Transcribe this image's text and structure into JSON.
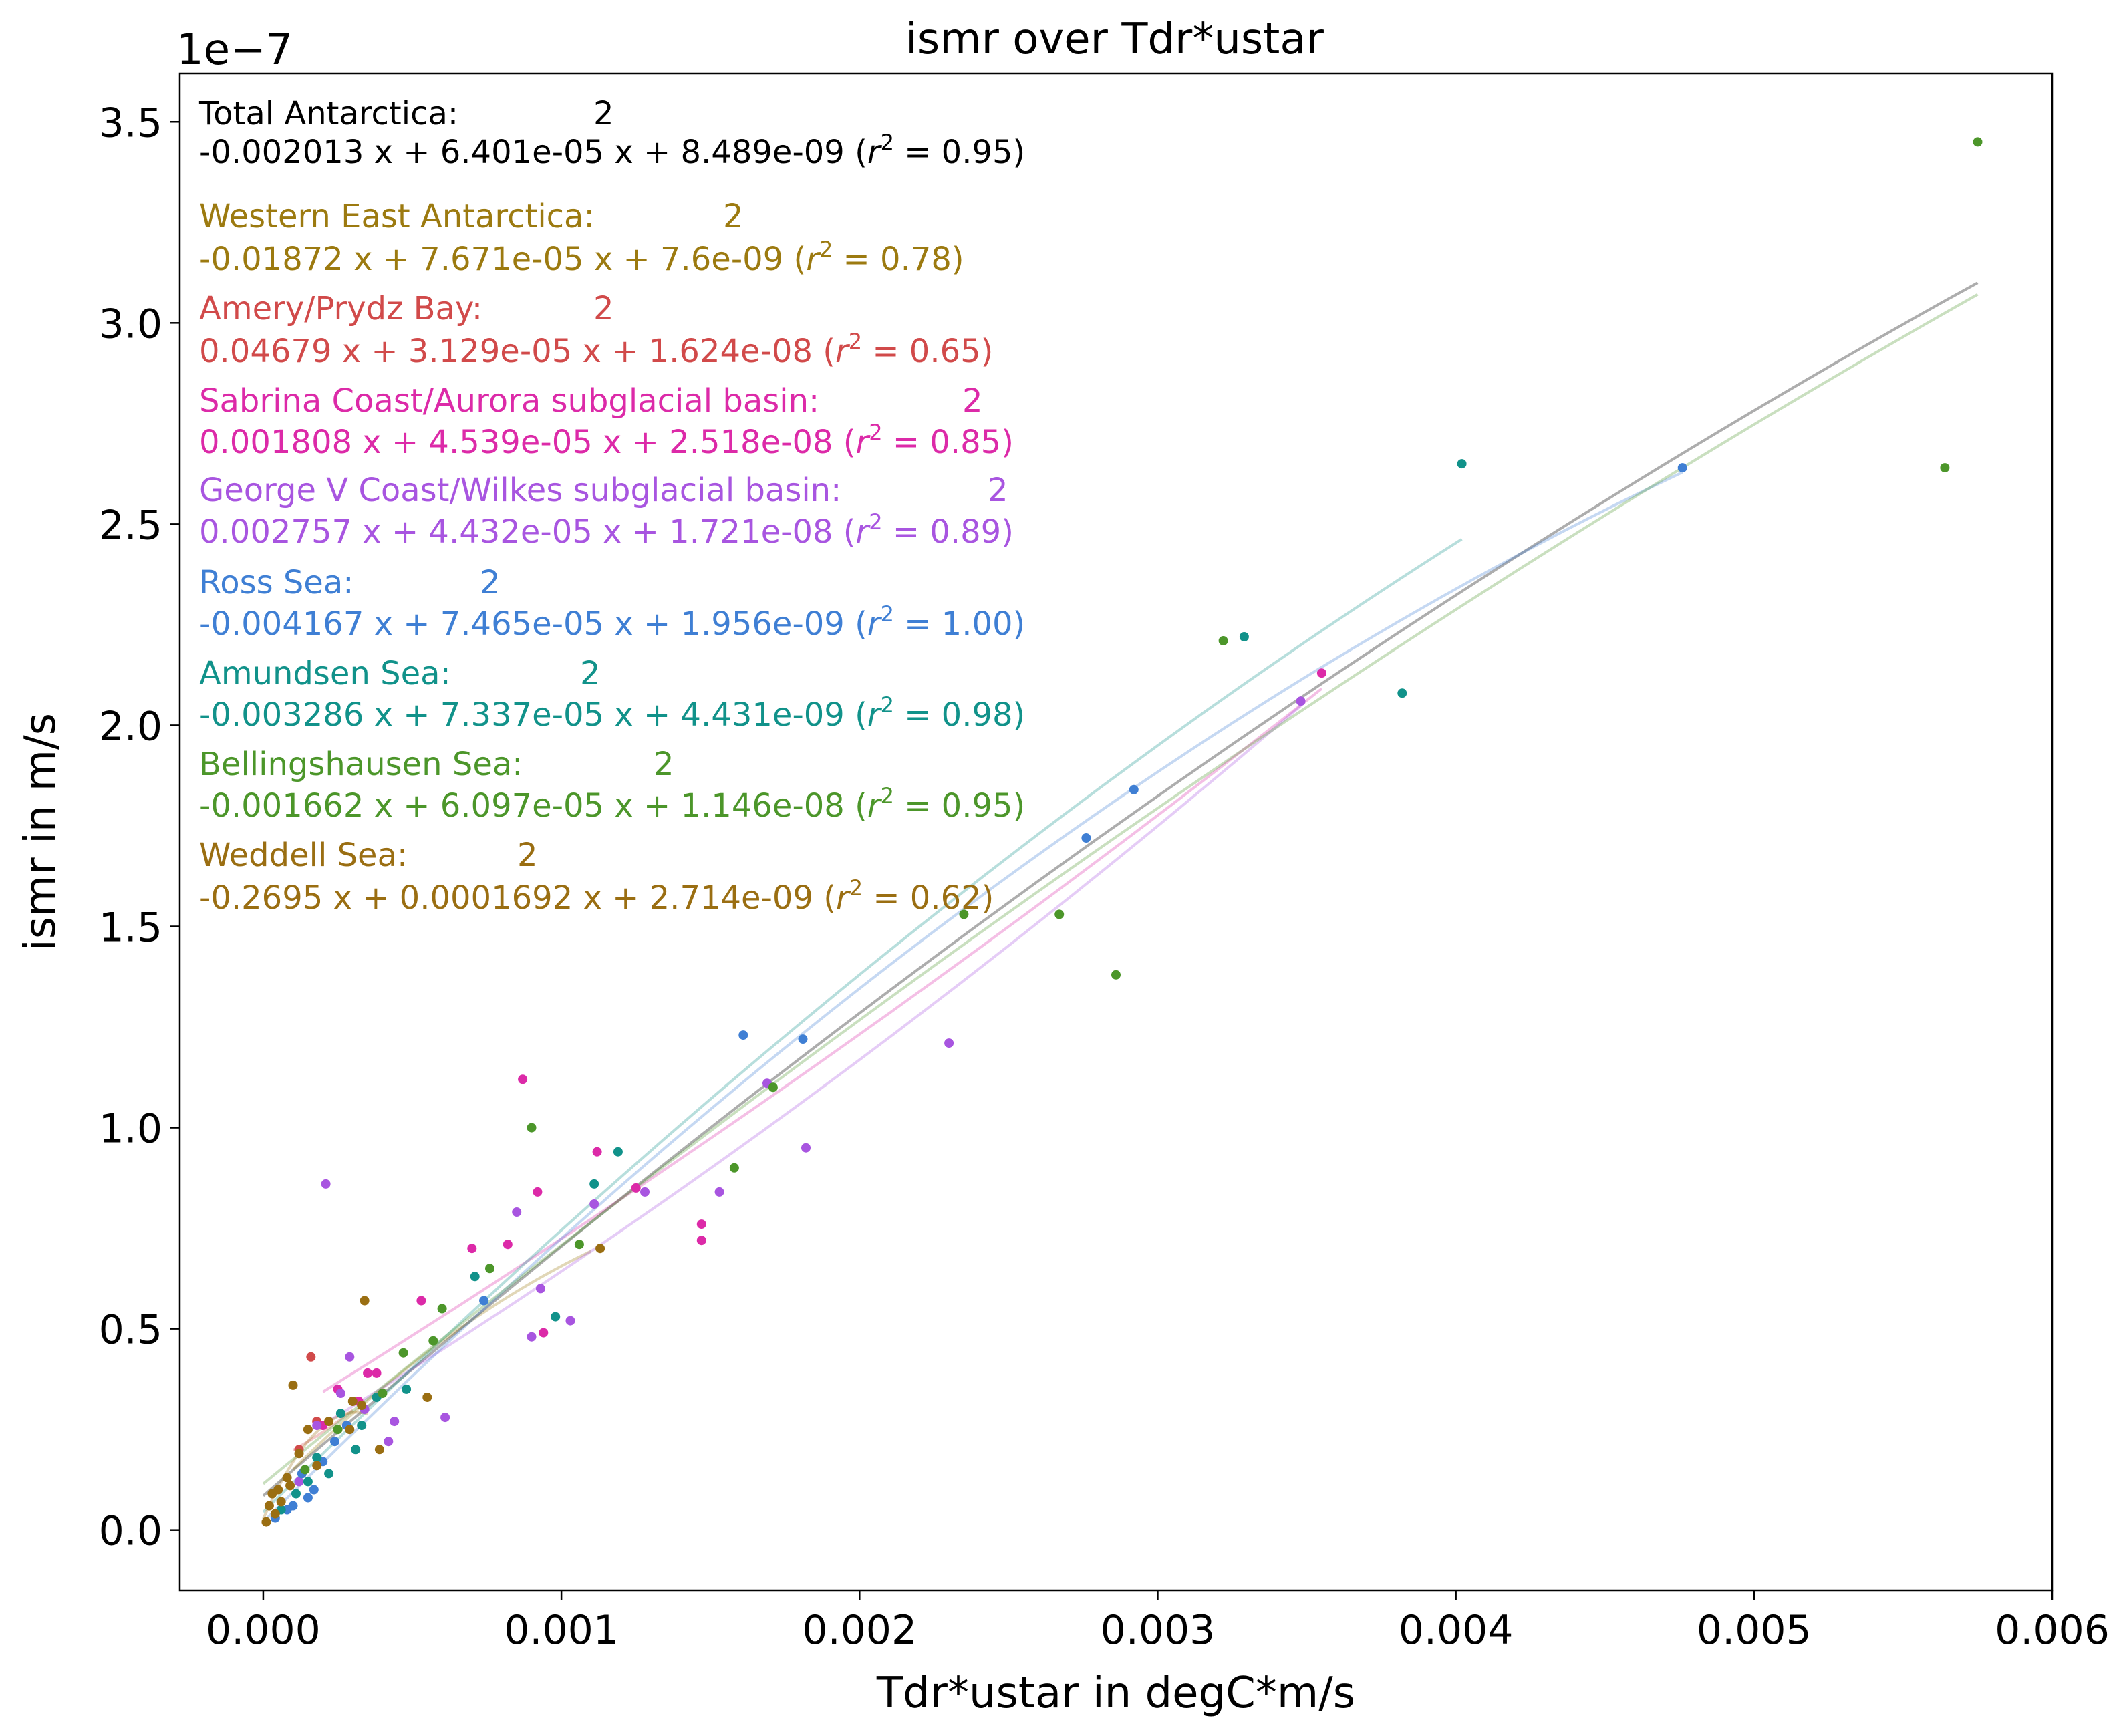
{
  "chart_data": {
    "type": "scatter",
    "title": "ismr over Tdr*ustar",
    "xlabel": "Tdr*ustar in degC*m/s",
    "ylabel": "ismr in m/s",
    "y_offset_text": "1e−7",
    "xlim": [
      -0.00028,
      0.006
    ],
    "ylim": [
      -0.15,
      3.62
    ],
    "x_ticks": [
      0.0,
      0.001,
      0.002,
      0.003,
      0.004,
      0.005,
      0.006
    ],
    "x_tick_labels": [
      "0.000",
      "0.001",
      "0.002",
      "0.003",
      "0.004",
      "0.005",
      "0.006"
    ],
    "y_ticks": [
      0.0,
      0.5,
      1.0,
      1.5,
      2.0,
      2.5,
      3.0,
      3.5
    ],
    "y_tick_labels": [
      "0.0",
      "0.5",
      "1.0",
      "1.5",
      "2.0",
      "2.5",
      "3.0",
      "3.5"
    ],
    "grid": false,
    "legend_position": "top-left",
    "series": [
      {
        "name": "Total Antarctica:",
        "degree": "2",
        "equation": "-0.002013 x + 6.401e-05 x + 8.489e-09 (",
        "r2": "0.95",
        "color": "#000000",
        "fit": {
          "x": [
            0.0,
            0.00575
          ],
          "a": -0.002013,
          "b": 6.401e-05,
          "c": 8.489e-09
        },
        "points": []
      },
      {
        "name": "Western East Antarctica:",
        "degree": "2",
        "equation": "-0.01872 x + 7.671e-05 x + 7.6e-09 (",
        "r2": "0.78",
        "color": "#9c7a10",
        "fit": {
          "x": [
            0.0001,
            0.0011
          ],
          "a": -0.01872,
          "b": 7.671e-05,
          "c": 7.6e-09
        },
        "points": []
      },
      {
        "name": "Amery/Prydz Bay:",
        "degree": "2",
        "equation": "0.04679 x + 3.129e-05 x + 1.624e-08 (",
        "r2": "0.65",
        "color": "#d14a4a",
        "fit": {
          "x": [
            0.0001,
            0.0003
          ],
          "a": 0.04679,
          "b": 3.129e-05,
          "c": 1.624e-08
        },
        "points": [
          [
            0.00016,
            0.43
          ],
          [
            0.00018,
            0.27
          ],
          [
            0.00012,
            0.2
          ]
        ]
      },
      {
        "name": "Sabrina Coast/Aurora subglacial basin:",
        "degree": "2",
        "equation": "0.001808 x + 4.539e-05 x + 2.518e-08 (",
        "r2": "0.85",
        "color": "#dc2aa8",
        "fit": {
          "x": [
            0.0002,
            0.00355
          ],
          "a": 0.001808,
          "b": 4.539e-05,
          "c": 2.518e-08
        },
        "points": [
          [
            0.00087,
            1.12
          ],
          [
            0.00112,
            0.94
          ],
          [
            0.00092,
            0.84
          ],
          [
            0.0007,
            0.7
          ],
          [
            0.00082,
            0.71
          ],
          [
            0.00053,
            0.57
          ],
          [
            0.00147,
            0.76
          ],
          [
            0.00147,
            0.72
          ],
          [
            0.00094,
            0.49
          ],
          [
            0.00035,
            0.39
          ],
          [
            0.00038,
            0.39
          ],
          [
            0.00025,
            0.35
          ],
          [
            0.00032,
            0.32
          ],
          [
            0.00355,
            2.13
          ],
          [
            0.00125,
            0.85
          ],
          [
            0.0002,
            0.26
          ]
        ]
      },
      {
        "name": "George V Coast/Wilkes subglacial basin:",
        "degree": "2",
        "equation": "0.002757 x + 4.432e-05 x + 1.721e-08 (",
        "r2": "0.89",
        "color": "#a855e0",
        "fit": {
          "x": [
            0.0002,
            0.00348
          ],
          "a": 0.002757,
          "b": 4.432e-05,
          "c": 1.721e-08
        },
        "points": [
          [
            0.00021,
            0.86
          ],
          [
            0.00085,
            0.79
          ],
          [
            0.00111,
            0.81
          ],
          [
            0.00128,
            0.84
          ],
          [
            0.00153,
            0.84
          ],
          [
            0.00182,
            0.95
          ],
          [
            0.0023,
            1.21
          ],
          [
            0.00169,
            1.11
          ],
          [
            0.00348,
            2.06
          ],
          [
            0.00093,
            0.6
          ],
          [
            0.00103,
            0.52
          ],
          [
            0.0009,
            0.48
          ],
          [
            0.00061,
            0.28
          ],
          [
            0.00044,
            0.27
          ],
          [
            0.00029,
            0.43
          ],
          [
            0.00034,
            0.3
          ],
          [
            0.00026,
            0.34
          ],
          [
            0.00018,
            0.26
          ],
          [
            0.00012,
            0.12
          ],
          [
            0.00042,
            0.22
          ]
        ]
      },
      {
        "name": "Ross Sea:",
        "degree": "2",
        "equation": "-0.004167 x + 7.465e-05 x + 1.956e-09 (",
        "r2": "1.00",
        "color": "#3f7fd4",
        "fit": {
          "x": [
            0.0,
            0.00476
          ],
          "a": -0.004167,
          "b": 7.465e-05,
          "c": 1.956e-09
        },
        "points": [
          [
            0.00476,
            2.64
          ],
          [
            0.00292,
            1.84
          ],
          [
            0.00276,
            1.72
          ],
          [
            0.00161,
            1.23
          ],
          [
            0.00181,
            1.22
          ],
          [
            0.00074,
            0.57
          ],
          [
            0.00017,
            0.1
          ],
          [
            0.00015,
            0.08
          ],
          [
            0.0001,
            0.06
          ],
          [
            8e-05,
            0.05
          ],
          [
            4e-05,
            0.03
          ],
          [
            0.00013,
            0.14
          ],
          [
            0.0002,
            0.17
          ],
          [
            0.00024,
            0.22
          ],
          [
            0.00028,
            0.26
          ]
        ]
      },
      {
        "name": "Amundsen Sea:",
        "degree": "2",
        "equation": "-0.003286 x + 7.337e-05 x + 4.431e-09 (",
        "r2": "0.98",
        "color": "#11928a",
        "fit": {
          "x": [
            0.0,
            0.00402
          ],
          "a": -0.003286,
          "b": 7.337e-05,
          "c": 4.431e-09
        },
        "points": [
          [
            0.00402,
            2.65
          ],
          [
            0.00382,
            2.08
          ],
          [
            0.00329,
            2.22
          ],
          [
            0.00119,
            0.94
          ],
          [
            0.00111,
            0.86
          ],
          [
            0.00098,
            0.53
          ],
          [
            0.00071,
            0.63
          ],
          [
            0.00048,
            0.35
          ],
          [
            0.00033,
            0.26
          ],
          [
            0.00031,
            0.2
          ],
          [
            0.00018,
            0.18
          ],
          [
            0.00022,
            0.14
          ],
          [
            0.00015,
            0.12
          ],
          [
            0.00026,
            0.29
          ],
          [
            0.00038,
            0.33
          ],
          [
            6e-05,
            0.05
          ],
          [
            0.00011,
            0.09
          ]
        ]
      },
      {
        "name": "Bellingshausen Sea:",
        "degree": "2",
        "equation": "-0.001662 x + 6.097e-05 x + 1.146e-08 (",
        "r2": "0.95",
        "color": "#4c962a",
        "fit": {
          "x": [
            0.0,
            0.00575
          ],
          "a": -0.001662,
          "b": 6.097e-05,
          "c": 1.146e-08
        },
        "points": [
          [
            0.00575,
            3.45
          ],
          [
            0.00564,
            2.64
          ],
          [
            0.00322,
            2.21
          ],
          [
            0.00267,
            1.53
          ],
          [
            0.00235,
            1.53
          ],
          [
            0.00286,
            1.38
          ],
          [
            0.00171,
            1.1
          ],
          [
            0.00158,
            0.9
          ],
          [
            0.0009,
            1.0
          ],
          [
            0.00106,
            0.71
          ],
          [
            0.00076,
            0.65
          ],
          [
            0.0006,
            0.55
          ],
          [
            0.00057,
            0.47
          ],
          [
            0.00047,
            0.44
          ],
          [
            0.0004,
            0.34
          ],
          [
            0.00025,
            0.25
          ],
          [
            0.00014,
            0.15
          ]
        ]
      },
      {
        "name": "Weddell Sea:",
        "degree": "2",
        "equation": "-0.2695 x + 0.0001692 x + 2.714e-09 (",
        "r2": "0.62",
        "color": "#9a6e12",
        "fit": {
          "x": [
            0.0,
            0.00035
          ],
          "a": -0.2695,
          "b": 0.0001692,
          "c": 2.714e-09
        },
        "points": [
          [
            0.00034,
            0.57
          ],
          [
            0.0001,
            0.36
          ],
          [
            0.00113,
            0.7
          ],
          [
            0.00055,
            0.33
          ],
          [
            0.0003,
            0.32
          ],
          [
            0.00033,
            0.31
          ],
          [
            0.00029,
            0.25
          ],
          [
            0.00039,
            0.2
          ],
          [
            0.00012,
            0.19
          ],
          [
            0.00018,
            0.16
          ],
          [
            0.00022,
            0.27
          ],
          [
            0.00015,
            0.25
          ],
          [
            8e-05,
            0.13
          ],
          [
            5e-05,
            0.1
          ],
          [
            3e-05,
            0.09
          ],
          [
            2e-05,
            0.06
          ],
          [
            4e-05,
            0.04
          ],
          [
            1e-05,
            0.02
          ],
          [
            6e-05,
            0.07
          ],
          [
            9e-05,
            0.11
          ]
        ]
      }
    ]
  }
}
